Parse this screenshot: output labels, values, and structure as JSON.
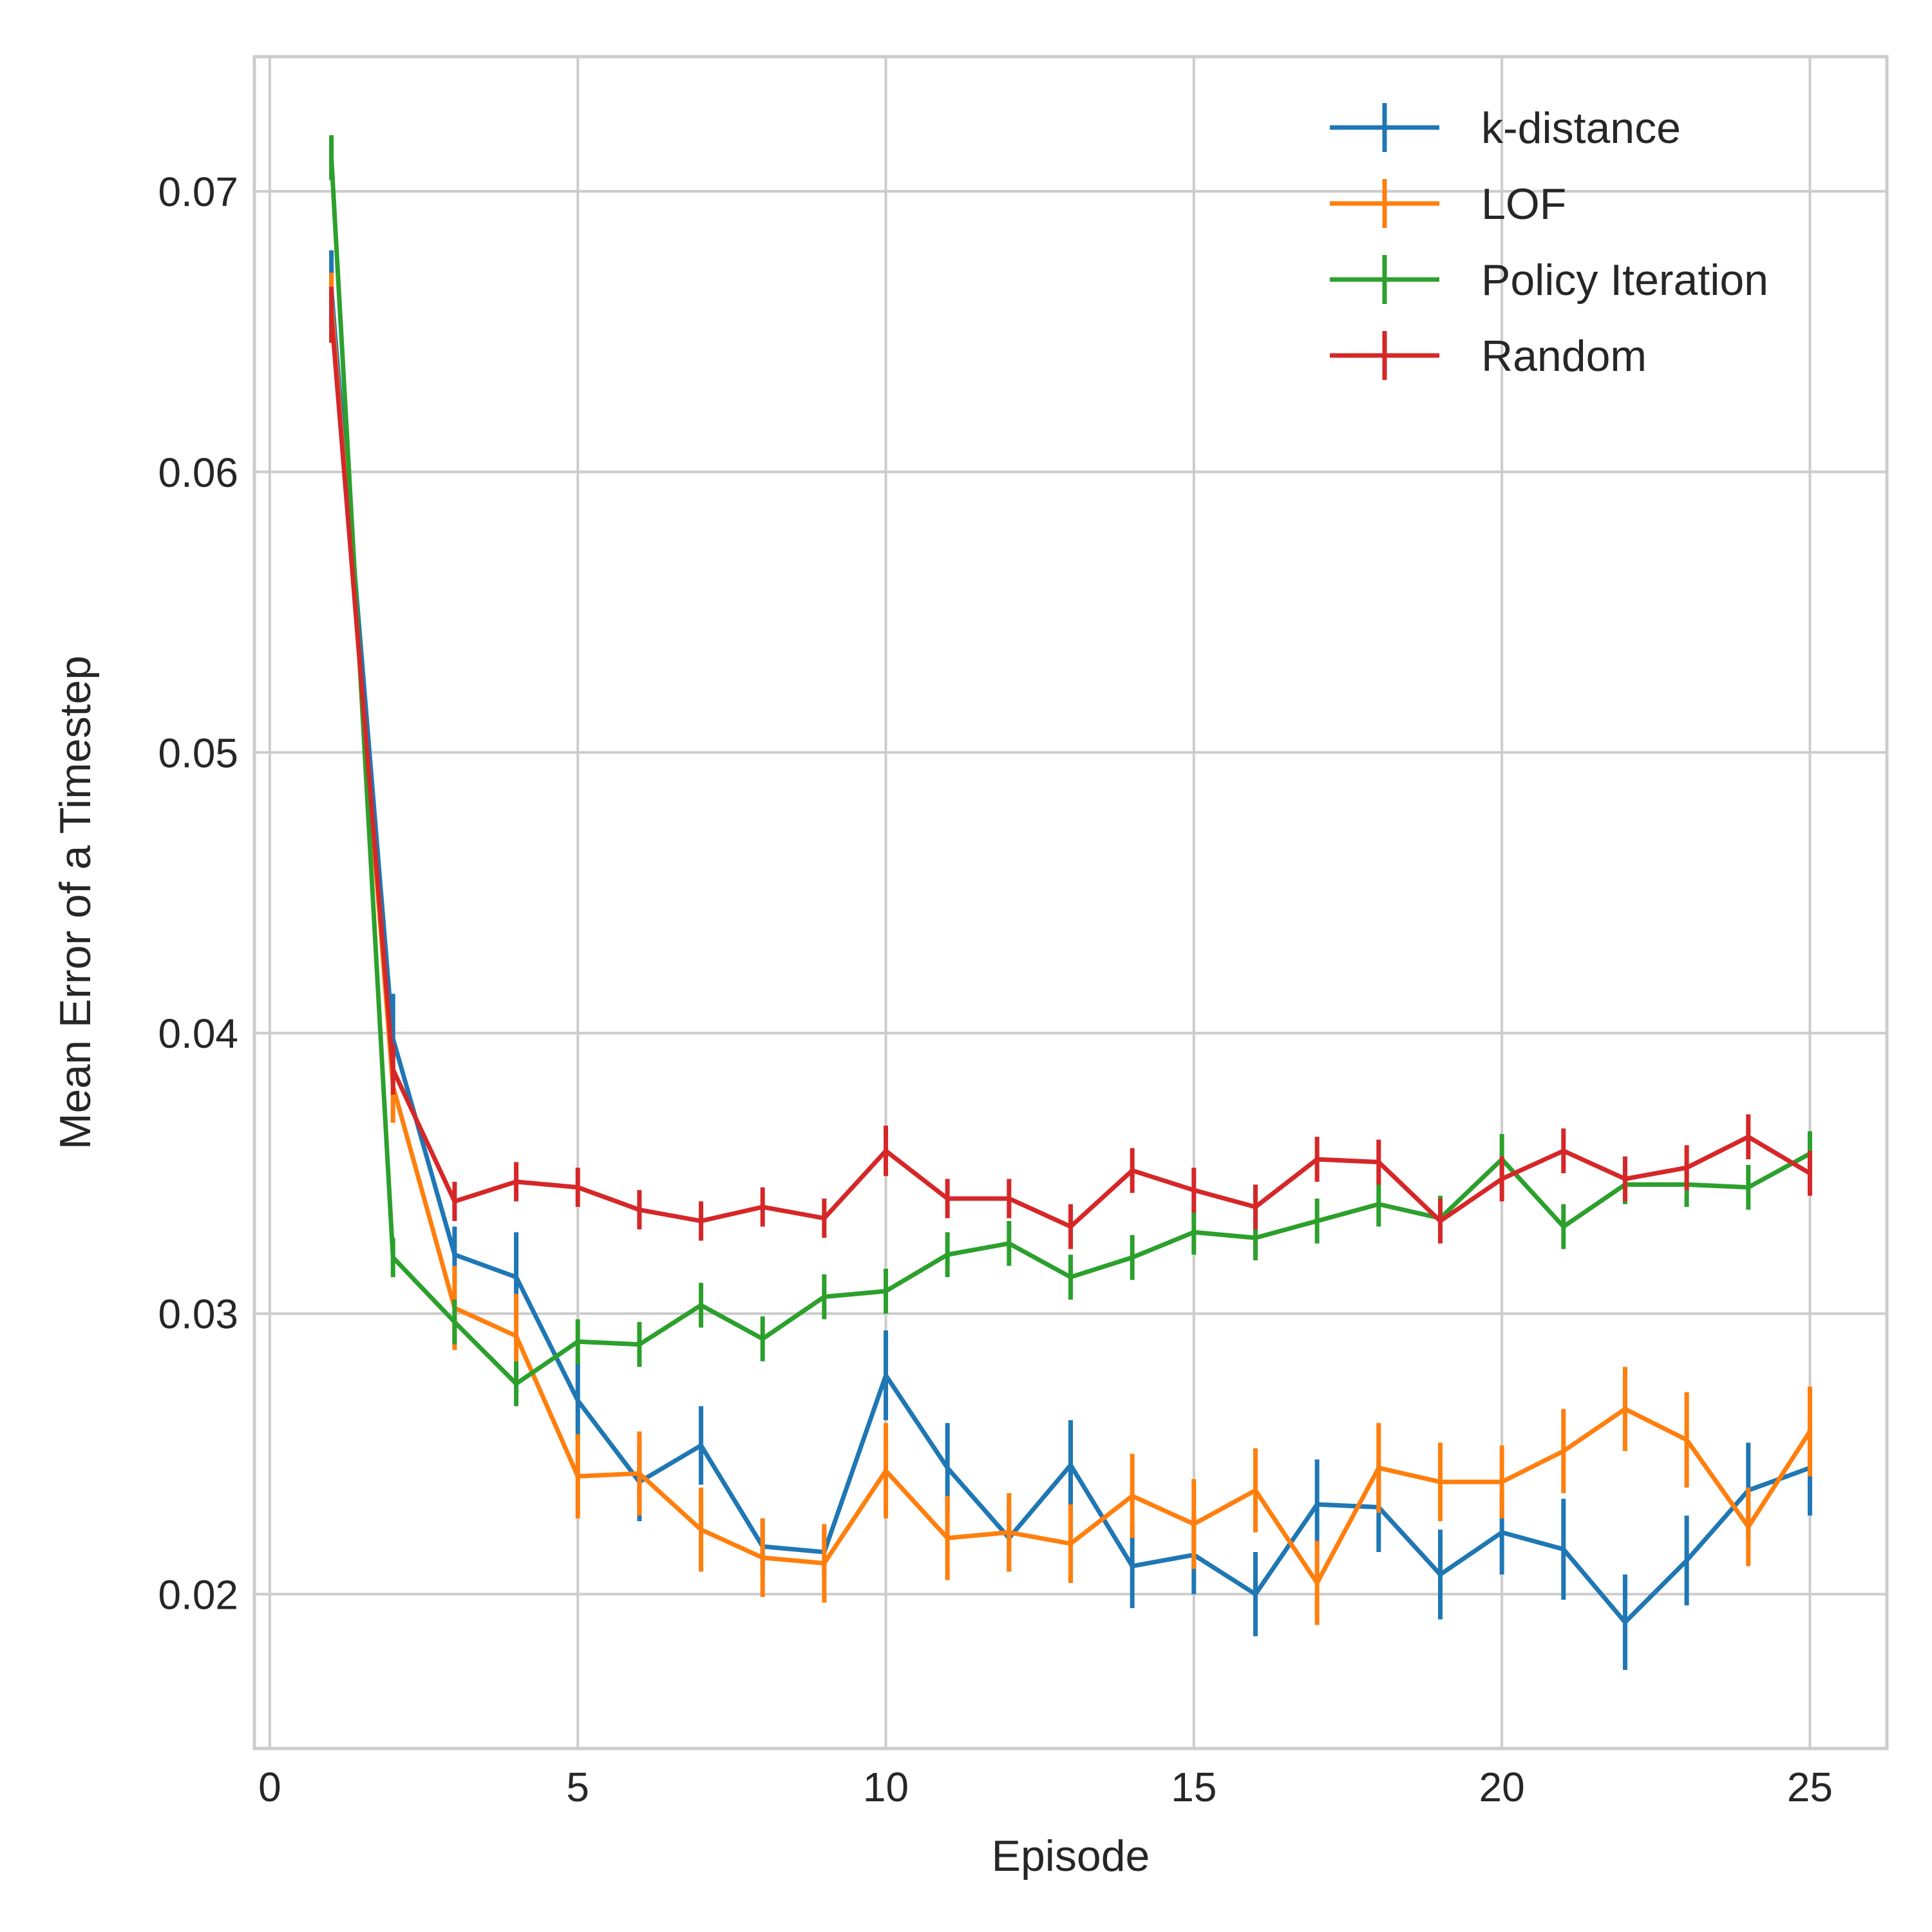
{
  "chart_data": {
    "type": "line",
    "title": "",
    "xlabel": "Episode",
    "ylabel": "Mean Error of a Timestep",
    "xlim": [
      -0.25,
      26.25
    ],
    "ylim": [
      0.0145,
      0.0748
    ],
    "xticks": [
      0,
      5,
      10,
      15,
      20,
      25
    ],
    "xtick_labels": [
      "0",
      "5",
      "10",
      "15",
      "20",
      "25"
    ],
    "yticks": [
      0.02,
      0.03,
      0.04,
      0.05,
      0.06,
      0.07
    ],
    "ytick_labels": [
      "0.02",
      "0.03",
      "0.04",
      "0.05",
      "0.06",
      "0.07"
    ],
    "grid": true,
    "legend_position": "top-right",
    "x": [
      1,
      2,
      3,
      4,
      5,
      6,
      7,
      8,
      9,
      10,
      11,
      12,
      13,
      14,
      15,
      16,
      17,
      18,
      19,
      20,
      21,
      22,
      23,
      24,
      25
    ],
    "series": [
      {
        "name": "k-distance",
        "color": "#1f77b4",
        "values": [
          0.0665,
          0.0398,
          0.0321,
          0.0313,
          0.0269,
          0.024,
          0.0253,
          0.0217,
          0.0215,
          0.0278,
          0.0245,
          0.022,
          0.0246,
          0.021,
          0.0214,
          0.02,
          0.0232,
          0.0231,
          0.0207,
          0.0222,
          0.0216,
          0.019,
          0.0212,
          0.0237,
          0.0245
        ],
        "errors": [
          0.0014,
          0.0016,
          0.001,
          0.0016,
          0.0014,
          0.0014,
          0.0014,
          0.001,
          0.0009,
          0.0016,
          0.0016,
          0.0012,
          0.0016,
          0.0015,
          0.0014,
          0.0015,
          0.0016,
          0.0016,
          0.0016,
          0.0015,
          0.0018,
          0.0017,
          0.0016,
          0.0017,
          0.0017
        ]
      },
      {
        "name": "LOF",
        "color": "#ff7f0e",
        "values": [
          0.066,
          0.0381,
          0.0302,
          0.0292,
          0.0242,
          0.0243,
          0.0223,
          0.0213,
          0.0211,
          0.0244,
          0.022,
          0.0222,
          0.0218,
          0.0235,
          0.0225,
          0.0237,
          0.0204,
          0.0245,
          0.024,
          0.024,
          0.0251,
          0.0266,
          0.0255,
          0.0224,
          0.0258
        ],
        "errors": [
          0.0011,
          0.0013,
          0.0015,
          0.0015,
          0.0015,
          0.0015,
          0.0015,
          0.0014,
          0.0014,
          0.0017,
          0.0015,
          0.0014,
          0.0014,
          0.0015,
          0.0016,
          0.0015,
          0.0015,
          0.0016,
          0.0014,
          0.0013,
          0.0015,
          0.0015,
          0.0017,
          0.0014,
          0.0016
        ]
      },
      {
        "name": "Policy Iteration",
        "color": "#2ca02c",
        "values": [
          0.0712,
          0.032,
          0.0297,
          0.0275,
          0.029,
          0.0289,
          0.0303,
          0.0291,
          0.0306,
          0.0308,
          0.0321,
          0.0325,
          0.0313,
          0.032,
          0.0329,
          0.0327,
          0.0333,
          0.0339,
          0.0334,
          0.0355,
          0.0331,
          0.0346,
          0.0346,
          0.0345,
          0.0357
        ],
        "errors": [
          0.0008,
          0.0007,
          0.0008,
          0.0008,
          0.0008,
          0.0008,
          0.0008,
          0.0008,
          0.0008,
          0.0008,
          0.0008,
          0.0008,
          0.0008,
          0.0008,
          0.0008,
          0.0008,
          0.0008,
          0.0008,
          0.0008,
          0.0009,
          0.0008,
          0.0007,
          0.0008,
          0.0008,
          0.0008
        ]
      },
      {
        "name": "Random",
        "color": "#d62728",
        "values": [
          0.0656,
          0.0387,
          0.034,
          0.0347,
          0.0345,
          0.0337,
          0.0333,
          0.0338,
          0.0334,
          0.0358,
          0.0341,
          0.0341,
          0.0331,
          0.0351,
          0.0344,
          0.0338,
          0.0355,
          0.0354,
          0.0333,
          0.0348,
          0.0358,
          0.0348,
          0.0352,
          0.0363,
          0.035
        ],
        "errors": [
          0.001,
          0.0009,
          0.0007,
          0.0007,
          0.0007,
          0.0007,
          0.0007,
          0.0007,
          0.0007,
          0.0009,
          0.0007,
          0.0007,
          0.0008,
          0.0008,
          0.0008,
          0.0008,
          0.0008,
          0.0008,
          0.0008,
          0.0008,
          0.0008,
          0.0008,
          0.0008,
          0.0008,
          0.0008
        ]
      }
    ]
  }
}
